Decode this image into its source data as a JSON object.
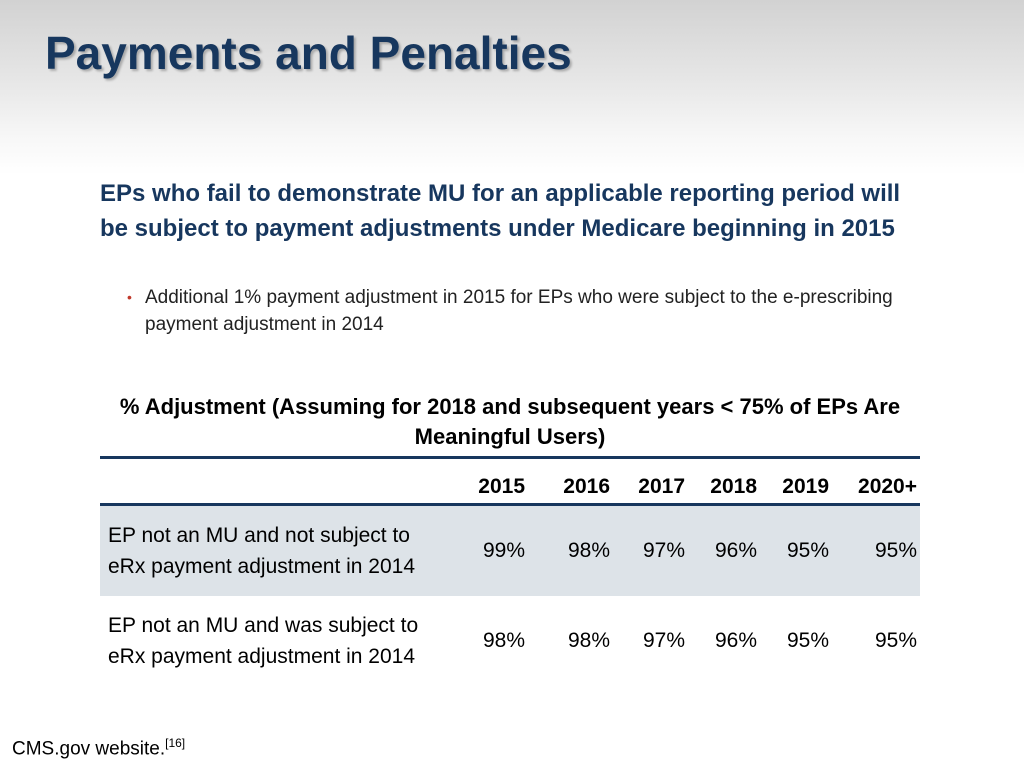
{
  "slide": {
    "title": "Payments and Penalties",
    "lead": "EPs who fail to demonstrate MU for an applicable reporting period will be subject to payment adjustments under Medicare beginning in 2015",
    "bullet": "Additional 1% payment adjustment in 2015 for EPs who were subject to the e-prescribing payment adjustment in 2014"
  },
  "table": {
    "title": "% Adjustment (Assuming for 2018 and subsequent years < 75% of EPs Are Meaningful Users)",
    "years": [
      "2015",
      "2016",
      "2017",
      "2018",
      "2019",
      "2020+"
    ],
    "rows": [
      {
        "label": "EP not an MU and not subject to eRx payment adjustment in 2014",
        "values": [
          "99%",
          "98%",
          "97%",
          "96%",
          "95%",
          "95%"
        ]
      },
      {
        "label": "EP not an MU and was subject to eRx payment adjustment in 2014",
        "values": [
          "98%",
          "98%",
          "97%",
          "96%",
          "95%",
          "95%"
        ]
      }
    ]
  },
  "footer": {
    "source": "CMS.gov website.",
    "ref": "[16]"
  },
  "colors": {
    "title": "#17375e",
    "row_shade": "#dde3e8",
    "bullet": "#c0392b"
  }
}
